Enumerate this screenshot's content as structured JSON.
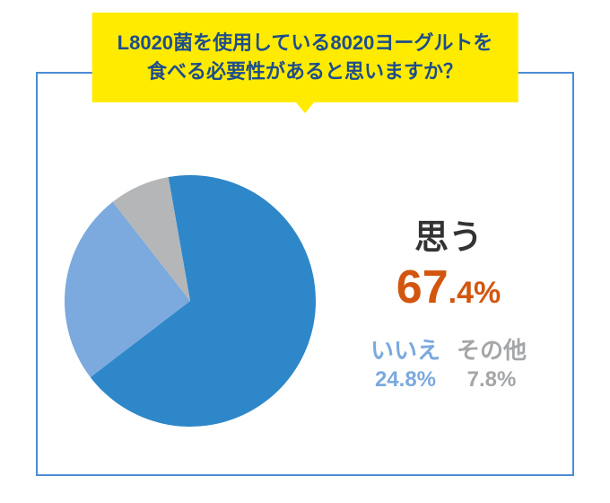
{
  "question": {
    "line1": "L8020菌を使用している8020ヨーグルトを",
    "line2": "食べる必要性があると思いますか？",
    "bg_color": "#ffeb00",
    "text_color": "#1e4d8c"
  },
  "border_color": "#4a8cd4",
  "pie": {
    "type": "pie",
    "radius": 140,
    "start_angle_deg": -100,
    "slices": [
      {
        "label": "思う",
        "value": 67.4,
        "color": "#2e87c8"
      },
      {
        "label": "いいえ",
        "value": 24.8,
        "color": "#7ca9de"
      },
      {
        "label": "その他",
        "value": 7.8,
        "color": "#b4b6b8"
      }
    ]
  },
  "legend": {
    "main": {
      "label": "思う",
      "pct_big": "67",
      "pct_small": ".4%",
      "label_color": "#333333",
      "pct_color": "#d2560f"
    },
    "subs": [
      {
        "label": "いいえ",
        "pct": "24.8%",
        "color": "#7ca9de"
      },
      {
        "label": "その他",
        "pct": "7.8%",
        "color": "#a4a6a8"
      }
    ]
  }
}
